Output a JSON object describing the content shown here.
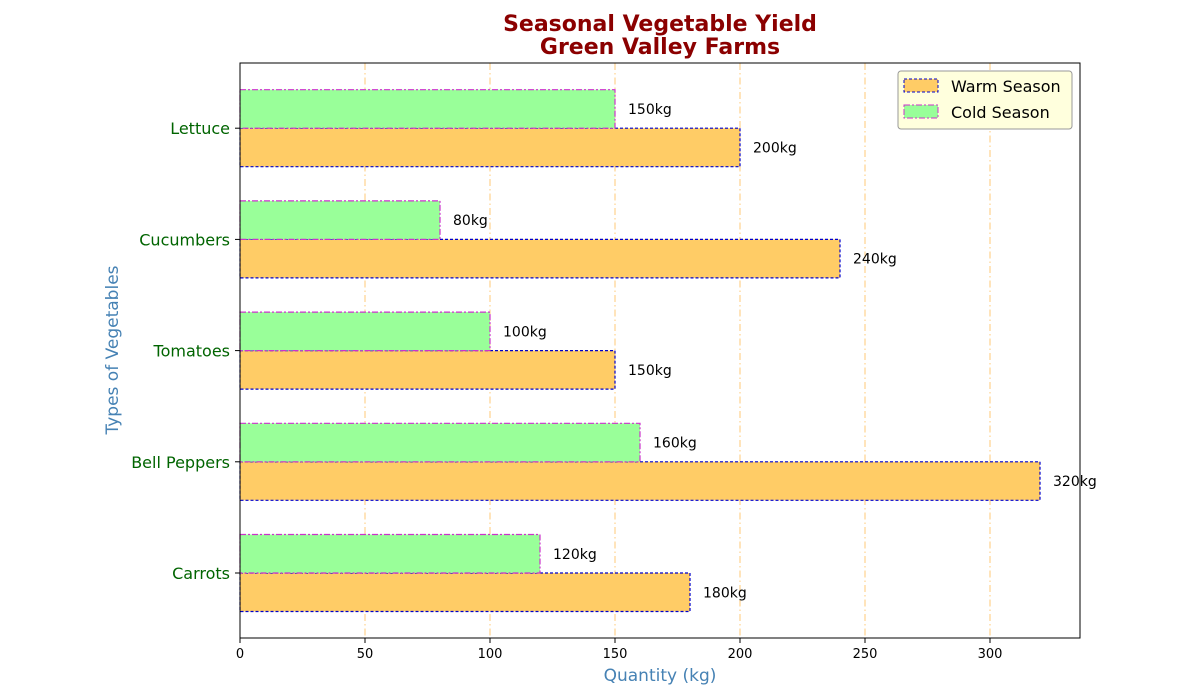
{
  "chart_data": {
    "type": "bar",
    "orientation": "horizontal",
    "title": "Seasonal Vegetable Yield\nGreen Valley Farms",
    "title_lines": [
      "Seasonal Vegetable Yield",
      "Green Valley Farms"
    ],
    "xlabel": "Quantity (kg)",
    "ylabel": "Types of Vegetables",
    "categories": [
      "Carrots",
      "Bell Peppers",
      "Tomatoes",
      "Cucumbers",
      "Lettuce"
    ],
    "series": [
      {
        "name": "Warm Season",
        "values": [
          180,
          320,
          150,
          240,
          200
        ],
        "labels": [
          "180kg",
          "320kg",
          "150kg",
          "240kg",
          "200kg"
        ],
        "fill": "#ffcc66",
        "edge": "#0000cc"
      },
      {
        "name": "Cold Season",
        "values": [
          120,
          160,
          100,
          80,
          150
        ],
        "labels": [
          "120kg",
          "160kg",
          "100kg",
          "80kg",
          "150kg"
        ],
        "fill": "#99ff99",
        "edge": "#cc33cc"
      }
    ],
    "xlim": [
      0,
      336
    ],
    "xticks": [
      0,
      50,
      100,
      150,
      200,
      250,
      300
    ],
    "xtick_labels": [
      "0",
      "50",
      "100",
      "150",
      "200",
      "250",
      "300"
    ],
    "grid": "vertical-dashdot",
    "legend_position": "top-right",
    "colors": {
      "title": "#8b0000",
      "axis_label": "#4682b4",
      "category_label": "#006400",
      "grid": "#ffc060",
      "legend_bg": "#ffffdd"
    }
  }
}
